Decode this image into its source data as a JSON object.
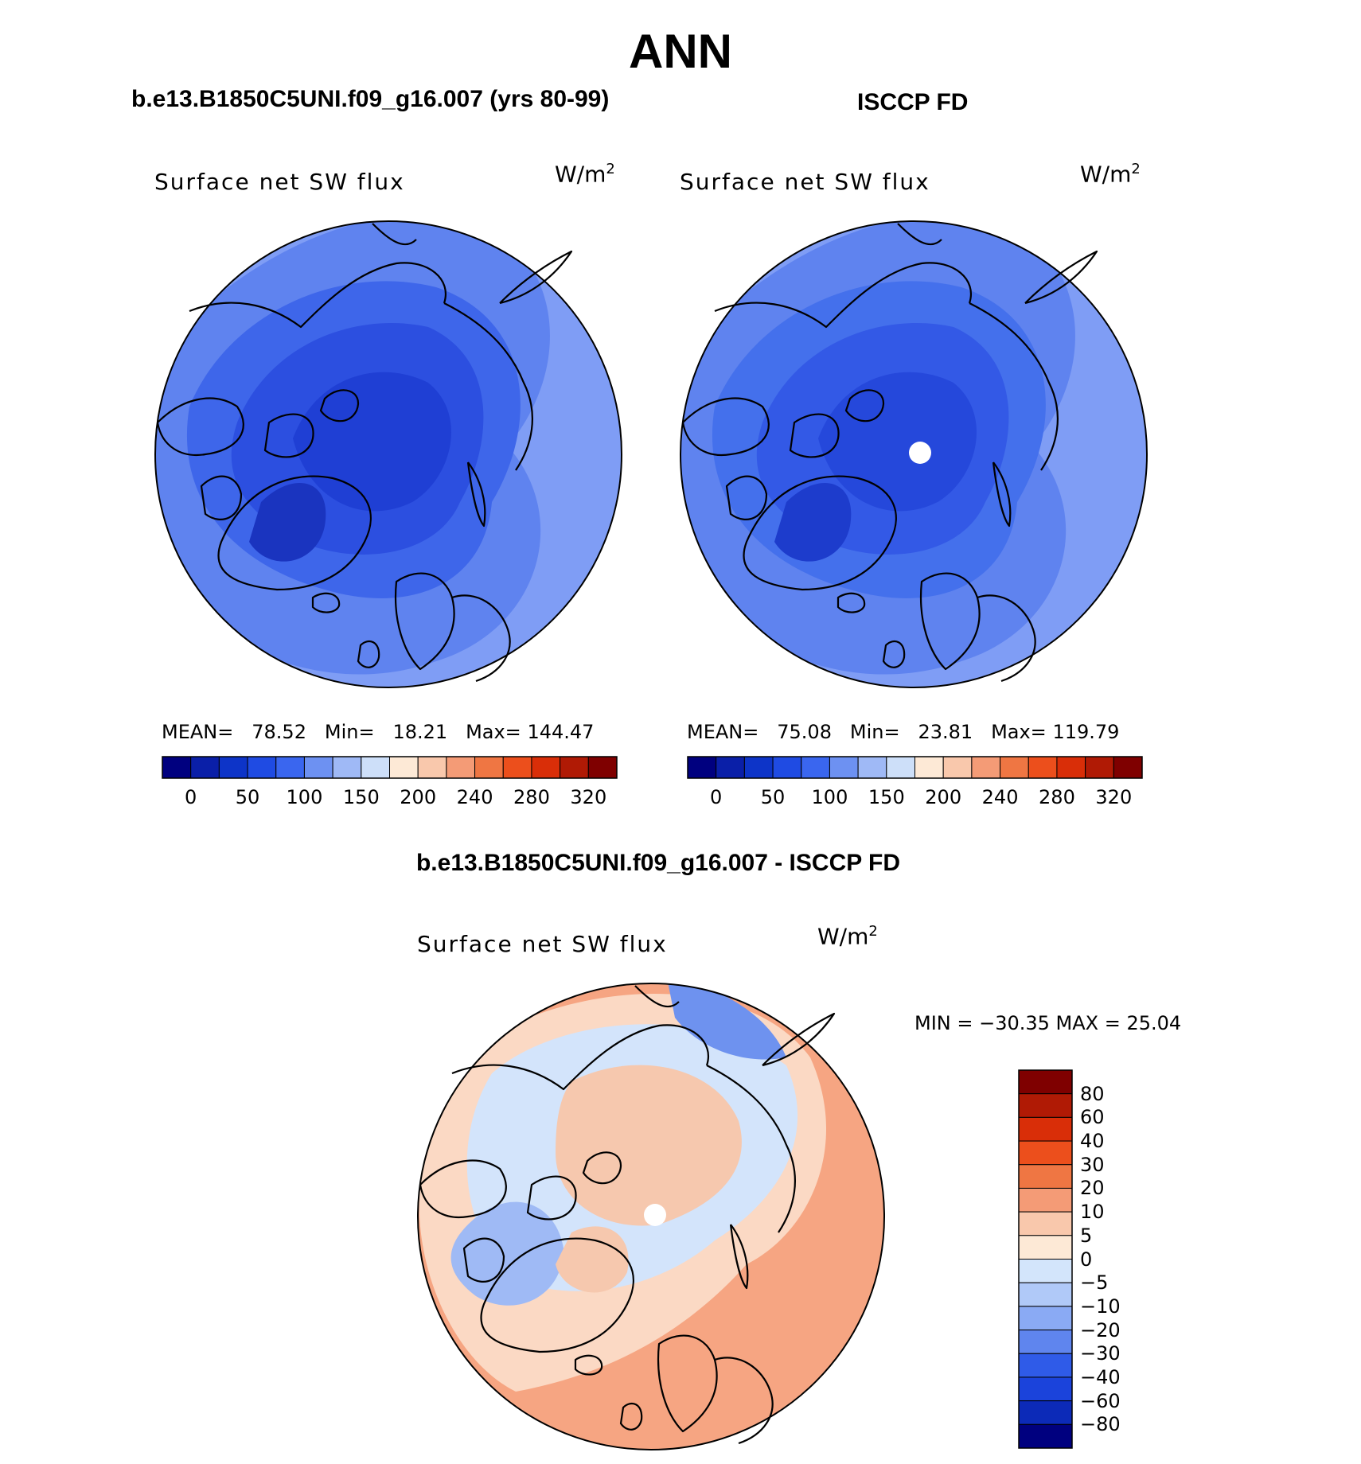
{
  "title": "ANN",
  "panels": [
    {
      "title": "b.e13.B1850C5UNI.f09_g16.007 (yrs 80-99)",
      "plot_label": "Surface net SW flux",
      "units_base": "W/m",
      "units_exp": "2",
      "stats": {
        "mean_label": "MEAN=",
        "mean": "78.52",
        "min_label": "Min=",
        "min": "18.21",
        "max_label": "Max=",
        "max": "144.47"
      }
    },
    {
      "title": "ISCCP FD",
      "plot_label": "Surface net SW flux",
      "units_base": "W/m",
      "units_exp": "2",
      "stats": {
        "mean_label": "MEAN=",
        "mean": "75.08",
        "min_label": "Min=",
        "min": "23.81",
        "max_label": "Max=",
        "max": "119.79"
      }
    },
    {
      "title": "b.e13.B1850C5UNI.f09_g16.007 - ISCCP FD",
      "plot_label": "Surface net SW flux",
      "units_base": "W/m",
      "units_exp": "2",
      "stats_text": "MIN = −30.35 MAX =   25.04"
    }
  ],
  "colorbar_abs": {
    "colors": [
      "#00007f",
      "#0a1fa8",
      "#0d34c8",
      "#1f4be3",
      "#3a66ef",
      "#6d91f2",
      "#9fb9f6",
      "#cddff9",
      "#fde9d6",
      "#f9c8ac",
      "#f49b76",
      "#ef7643",
      "#ec4f1c",
      "#d92e08",
      "#b01a05",
      "#7f0000"
    ],
    "tick_labels": [
      "0",
      "50",
      "100",
      "150",
      "200",
      "240",
      "280",
      "320"
    ]
  },
  "colorbar_diff": {
    "colors": [
      "#7f0000",
      "#b01a05",
      "#d92e08",
      "#ec4f1c",
      "#ef7643",
      "#f49b76",
      "#f9c8ac",
      "#fde9d6",
      "#d3e5fb",
      "#b0c9f8",
      "#8aaaf4",
      "#5f85ee",
      "#2f5be8",
      "#1b43db",
      "#0c2ab8",
      "#00007f"
    ],
    "tick_labels": [
      "80",
      "60",
      "40",
      "30",
      "20",
      "10",
      "5",
      "0",
      "−5",
      "−10",
      "−20",
      "−30",
      "−40",
      "−60",
      "−80"
    ]
  },
  "map_style": {
    "left_colors": [
      "#7f9df5",
      "#5f83ef",
      "#3e66ea",
      "#2c4fe0",
      "#1f3fd4",
      "#1a34bf"
    ],
    "right_colors": [
      "#7f9df5",
      "#5f83ef",
      "#4470ec",
      "#3359e6",
      "#2548db",
      "#1d3ccc"
    ],
    "diff_colors": [
      "#f6a582",
      "#fbd9c4",
      "#f6c8ae",
      "#d3e4fb",
      "#9fbaf5",
      "#6e92ef"
    ]
  }
}
